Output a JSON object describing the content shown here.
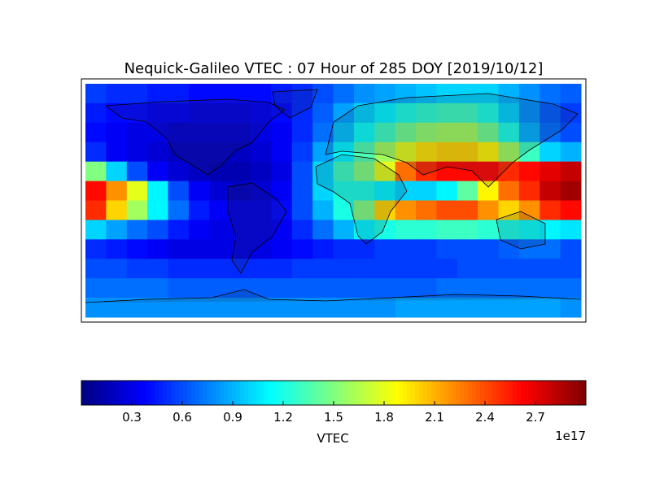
{
  "chart_data": {
    "type": "heatmap",
    "title": "Nequick-Galileo VTEC : 07 Hour of 285 DOY [2019/10/12]",
    "colormap": "jet",
    "zlim": [
      0,
      3.0
    ],
    "colorbar_ticks": [
      0.3,
      0.6,
      0.9,
      1.2,
      1.5,
      1.8,
      2.1,
      2.4,
      2.7
    ],
    "colorbar_label": "VTEC",
    "colorbar_offset_label": "1e17",
    "values": [
      [
        0.55,
        0.5,
        0.5,
        0.45,
        0.45,
        0.4,
        0.4,
        0.4,
        0.4,
        0.45,
        0.5,
        0.6,
        0.7,
        0.8,
        0.85,
        0.9,
        0.95,
        1.0,
        1.0,
        1.0,
        0.9,
        0.8,
        0.7,
        0.65
      ],
      [
        0.45,
        0.4,
        0.4,
        0.35,
        0.35,
        0.3,
        0.3,
        0.3,
        0.35,
        0.4,
        0.5,
        0.65,
        0.85,
        1.0,
        1.1,
        1.2,
        1.25,
        1.3,
        1.3,
        1.2,
        1.0,
        0.8,
        0.65,
        0.55
      ],
      [
        0.4,
        0.35,
        0.3,
        0.3,
        0.25,
        0.25,
        0.25,
        0.25,
        0.3,
        0.35,
        0.5,
        0.7,
        0.95,
        1.15,
        1.3,
        1.45,
        1.55,
        1.6,
        1.6,
        1.45,
        1.2,
        0.9,
        0.7,
        0.6
      ],
      [
        0.5,
        0.35,
        0.3,
        0.25,
        0.2,
        0.2,
        0.2,
        0.2,
        0.25,
        0.35,
        0.55,
        0.85,
        1.1,
        1.35,
        1.6,
        1.8,
        1.95,
        2.0,
        2.0,
        1.9,
        1.6,
        1.3,
        1.0,
        0.9
      ],
      [
        1.5,
        1.0,
        0.6,
        0.35,
        0.25,
        0.2,
        0.15,
        0.15,
        0.2,
        0.3,
        0.6,
        1.0,
        1.3,
        1.5,
        1.8,
        2.3,
        2.5,
        2.6,
        2.6,
        2.6,
        2.5,
        2.6,
        2.7,
        2.8
      ],
      [
        2.6,
        2.2,
        1.8,
        1.1,
        0.6,
        0.35,
        0.25,
        0.2,
        0.25,
        0.35,
        0.6,
        1.0,
        1.2,
        1.2,
        1.1,
        1.0,
        1.0,
        1.1,
        1.4,
        1.9,
        2.3,
        2.5,
        2.8,
        2.9
      ],
      [
        2.5,
        2.0,
        1.6,
        1.1,
        0.7,
        0.45,
        0.35,
        0.3,
        0.3,
        0.4,
        0.6,
        0.9,
        1.2,
        1.5,
        2.0,
        2.2,
        2.3,
        2.4,
        2.4,
        2.2,
        2.0,
        2.2,
        2.5,
        2.6
      ],
      [
        1.0,
        0.85,
        0.7,
        0.6,
        0.45,
        0.35,
        0.3,
        0.3,
        0.3,
        0.35,
        0.5,
        0.7,
        0.9,
        1.1,
        1.2,
        1.25,
        1.25,
        1.3,
        1.3,
        1.25,
        1.2,
        1.15,
        1.1,
        1.05
      ],
      [
        0.5,
        0.45,
        0.4,
        0.35,
        0.3,
        0.3,
        0.3,
        0.3,
        0.3,
        0.35,
        0.4,
        0.45,
        0.5,
        0.5,
        0.55,
        0.55,
        0.55,
        0.6,
        0.6,
        0.6,
        0.65,
        0.7,
        0.7,
        0.6
      ],
      [
        0.6,
        0.6,
        0.55,
        0.55,
        0.5,
        0.5,
        0.5,
        0.5,
        0.5,
        0.5,
        0.55,
        0.55,
        0.55,
        0.55,
        0.55,
        0.55,
        0.55,
        0.55,
        0.6,
        0.6,
        0.6,
        0.6,
        0.6,
        0.6
      ],
      [
        0.7,
        0.7,
        0.7,
        0.7,
        0.65,
        0.65,
        0.65,
        0.65,
        0.65,
        0.65,
        0.65,
        0.65,
        0.65,
        0.65,
        0.65,
        0.65,
        0.65,
        0.7,
        0.7,
        0.7,
        0.7,
        0.7,
        0.7,
        0.7
      ],
      [
        0.8,
        0.8,
        0.8,
        0.8,
        0.8,
        0.8,
        0.8,
        0.8,
        0.8,
        0.8,
        0.8,
        0.8,
        0.8,
        0.8,
        0.8,
        0.85,
        0.85,
        0.85,
        0.85,
        0.85,
        0.85,
        0.85,
        0.85,
        0.8
      ]
    ]
  }
}
